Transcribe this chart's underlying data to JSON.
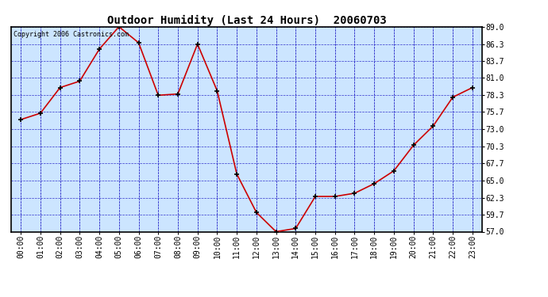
{
  "title": "Outdoor Humidity (Last 24 Hours)  20060703",
  "copyright_text": "Copyright 2006 Castronics.com",
  "x_labels": [
    "00:00",
    "01:00",
    "02:00",
    "03:00",
    "04:00",
    "05:00",
    "06:00",
    "07:00",
    "08:00",
    "09:00",
    "10:00",
    "11:00",
    "12:00",
    "13:00",
    "14:00",
    "15:00",
    "16:00",
    "17:00",
    "18:00",
    "19:00",
    "20:00",
    "21:00",
    "22:00",
    "23:00"
  ],
  "y_values": [
    74.5,
    75.5,
    79.5,
    80.5,
    85.5,
    89.0,
    86.5,
    78.3,
    78.5,
    86.3,
    79.0,
    66.0,
    60.0,
    57.0,
    57.5,
    62.5,
    62.5,
    63.0,
    64.5,
    66.5,
    70.5,
    73.5,
    78.0,
    79.5
  ],
  "ylim_min": 57.0,
  "ylim_max": 89.0,
  "ytick_values": [
    57.0,
    59.7,
    62.3,
    65.0,
    67.7,
    70.3,
    73.0,
    75.7,
    78.3,
    81.0,
    83.7,
    86.3,
    89.0
  ],
  "ytick_labels": [
    "57.0",
    "59.7",
    "62.3",
    "65.0",
    "67.7",
    "70.3",
    "73.0",
    "75.7",
    "78.3",
    "81.0",
    "83.7",
    "86.3",
    "89.0"
  ],
  "line_color": "#cc0000",
  "marker_color": "#000000",
  "fig_bg_color": "#ffffff",
  "plot_bg_color": "#cce5ff",
  "grid_color": "#3333cc",
  "border_color": "#000000",
  "title_color": "#000000",
  "tick_label_color": "#000000",
  "copyright_color": "#000000",
  "title_fontsize": 10,
  "tick_fontsize": 7,
  "copyright_fontsize": 6
}
